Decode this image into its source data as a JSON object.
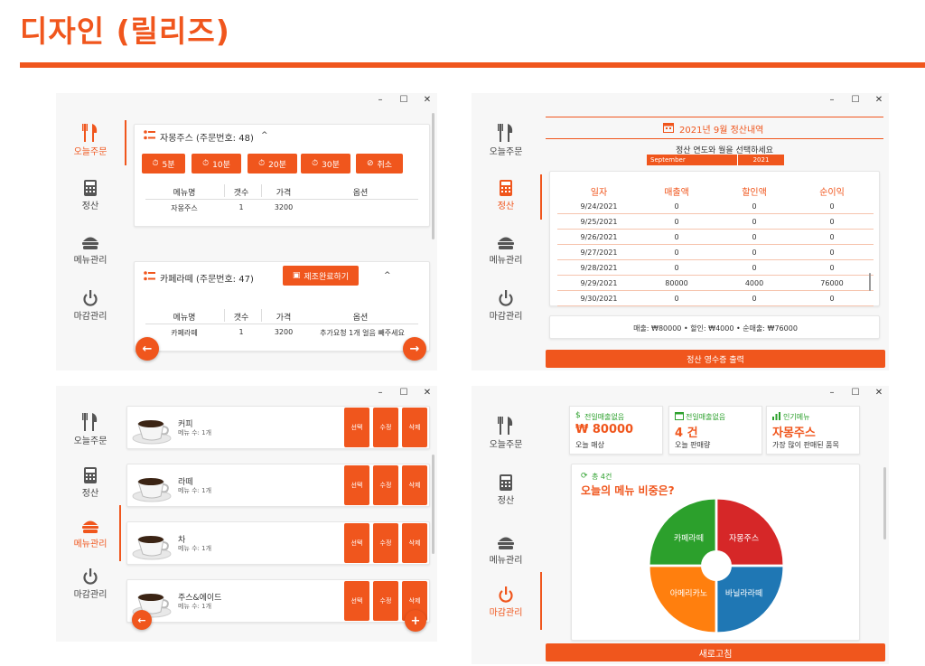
{
  "page": {
    "title": "디자인 (릴리즈)",
    "accent": "#f0561d"
  },
  "window_controls": {
    "min": "–",
    "max": "☐",
    "close": "✕"
  },
  "nav": {
    "orders": "오늘주문",
    "settle": "정산",
    "menu": "메뉴관리",
    "close": "마감관리"
  },
  "orders_panel": {
    "order1": {
      "title": "자몽주스 (주문번호: 48)",
      "chevron": "^",
      "timer_buttons": [
        "5분",
        "10분",
        "20분",
        "30분"
      ],
      "cancel": "취소",
      "headers": [
        "메뉴명",
        "갯수",
        "가격",
        "옵션"
      ],
      "row": [
        "자몽주스",
        "1",
        "3200",
        ""
      ]
    },
    "order2": {
      "title": "카페라떼 (주문번호: 47)",
      "complete_button": "제조완료하기",
      "chevron": "^",
      "headers": [
        "메뉴명",
        "갯수",
        "가격",
        "옵션"
      ],
      "row": [
        "카페라떼",
        "1",
        "3200",
        "추가요청 1개 얼음 빼주세요"
      ]
    },
    "prev": "←",
    "next": "→"
  },
  "settle_panel": {
    "header": "2021년 9월 정산내역",
    "instruction": "정산 연도와 월을 선택하세요",
    "month_select": "September",
    "year_select": "2021",
    "columns": [
      "일자",
      "매출액",
      "할인액",
      "순이익"
    ],
    "rows": [
      [
        "9/24/2021",
        "0",
        "0",
        "0"
      ],
      [
        "9/25/2021",
        "0",
        "0",
        "0"
      ],
      [
        "9/26/2021",
        "0",
        "0",
        "0"
      ],
      [
        "9/27/2021",
        "0",
        "0",
        "0"
      ],
      [
        "9/28/2021",
        "0",
        "0",
        "0"
      ],
      [
        "9/29/2021",
        "80000",
        "4000",
        "76000"
      ],
      [
        "9/30/2021",
        "0",
        "0",
        "0"
      ]
    ],
    "summary": "매출: ₩80000   •   할인: ₩4000   •   순매출: ₩76000",
    "print_button": "정산 영수증 출력"
  },
  "menu_panel": {
    "items": [
      {
        "name": "커피",
        "count": "메뉴 수: 1개"
      },
      {
        "name": "라떼",
        "count": "메뉴 수: 1개"
      },
      {
        "name": "차",
        "count": "메뉴 수: 1개"
      },
      {
        "name": "주스&에이드",
        "count": "메뉴 수: 1개"
      }
    ],
    "select": "선택",
    "edit": "수정",
    "delete": "삭제",
    "back": "←",
    "add": "+"
  },
  "close_panel": {
    "stats": [
      {
        "label": "전일매출없음",
        "value": "₩ 80000",
        "sub": "오늘 매상",
        "icon": "dollar-icon"
      },
      {
        "label": "전일매출없음",
        "value": "4 건",
        "sub": "오늘 판매량",
        "icon": "calendar-icon"
      },
      {
        "label": "인기메뉴",
        "value": "자몽주스",
        "sub": "가장 많이 판매된 품목",
        "icon": "bar-chart-icon"
      }
    ],
    "chart_count": "총 4건",
    "chart_title": "오늘의 메뉴 비중은?",
    "refresh_button": "새로고침"
  },
  "chart_data": {
    "type": "pie",
    "title": "오늘의 메뉴 비중은?",
    "categories": [
      "자몽주스",
      "바닐라라떼",
      "아메리카노",
      "카페라떼"
    ],
    "values": [
      1,
      1,
      1,
      1
    ],
    "colors": [
      "#d62728",
      "#1f77b4",
      "#ff7f0e",
      "#2ca02c"
    ],
    "donut": true
  }
}
